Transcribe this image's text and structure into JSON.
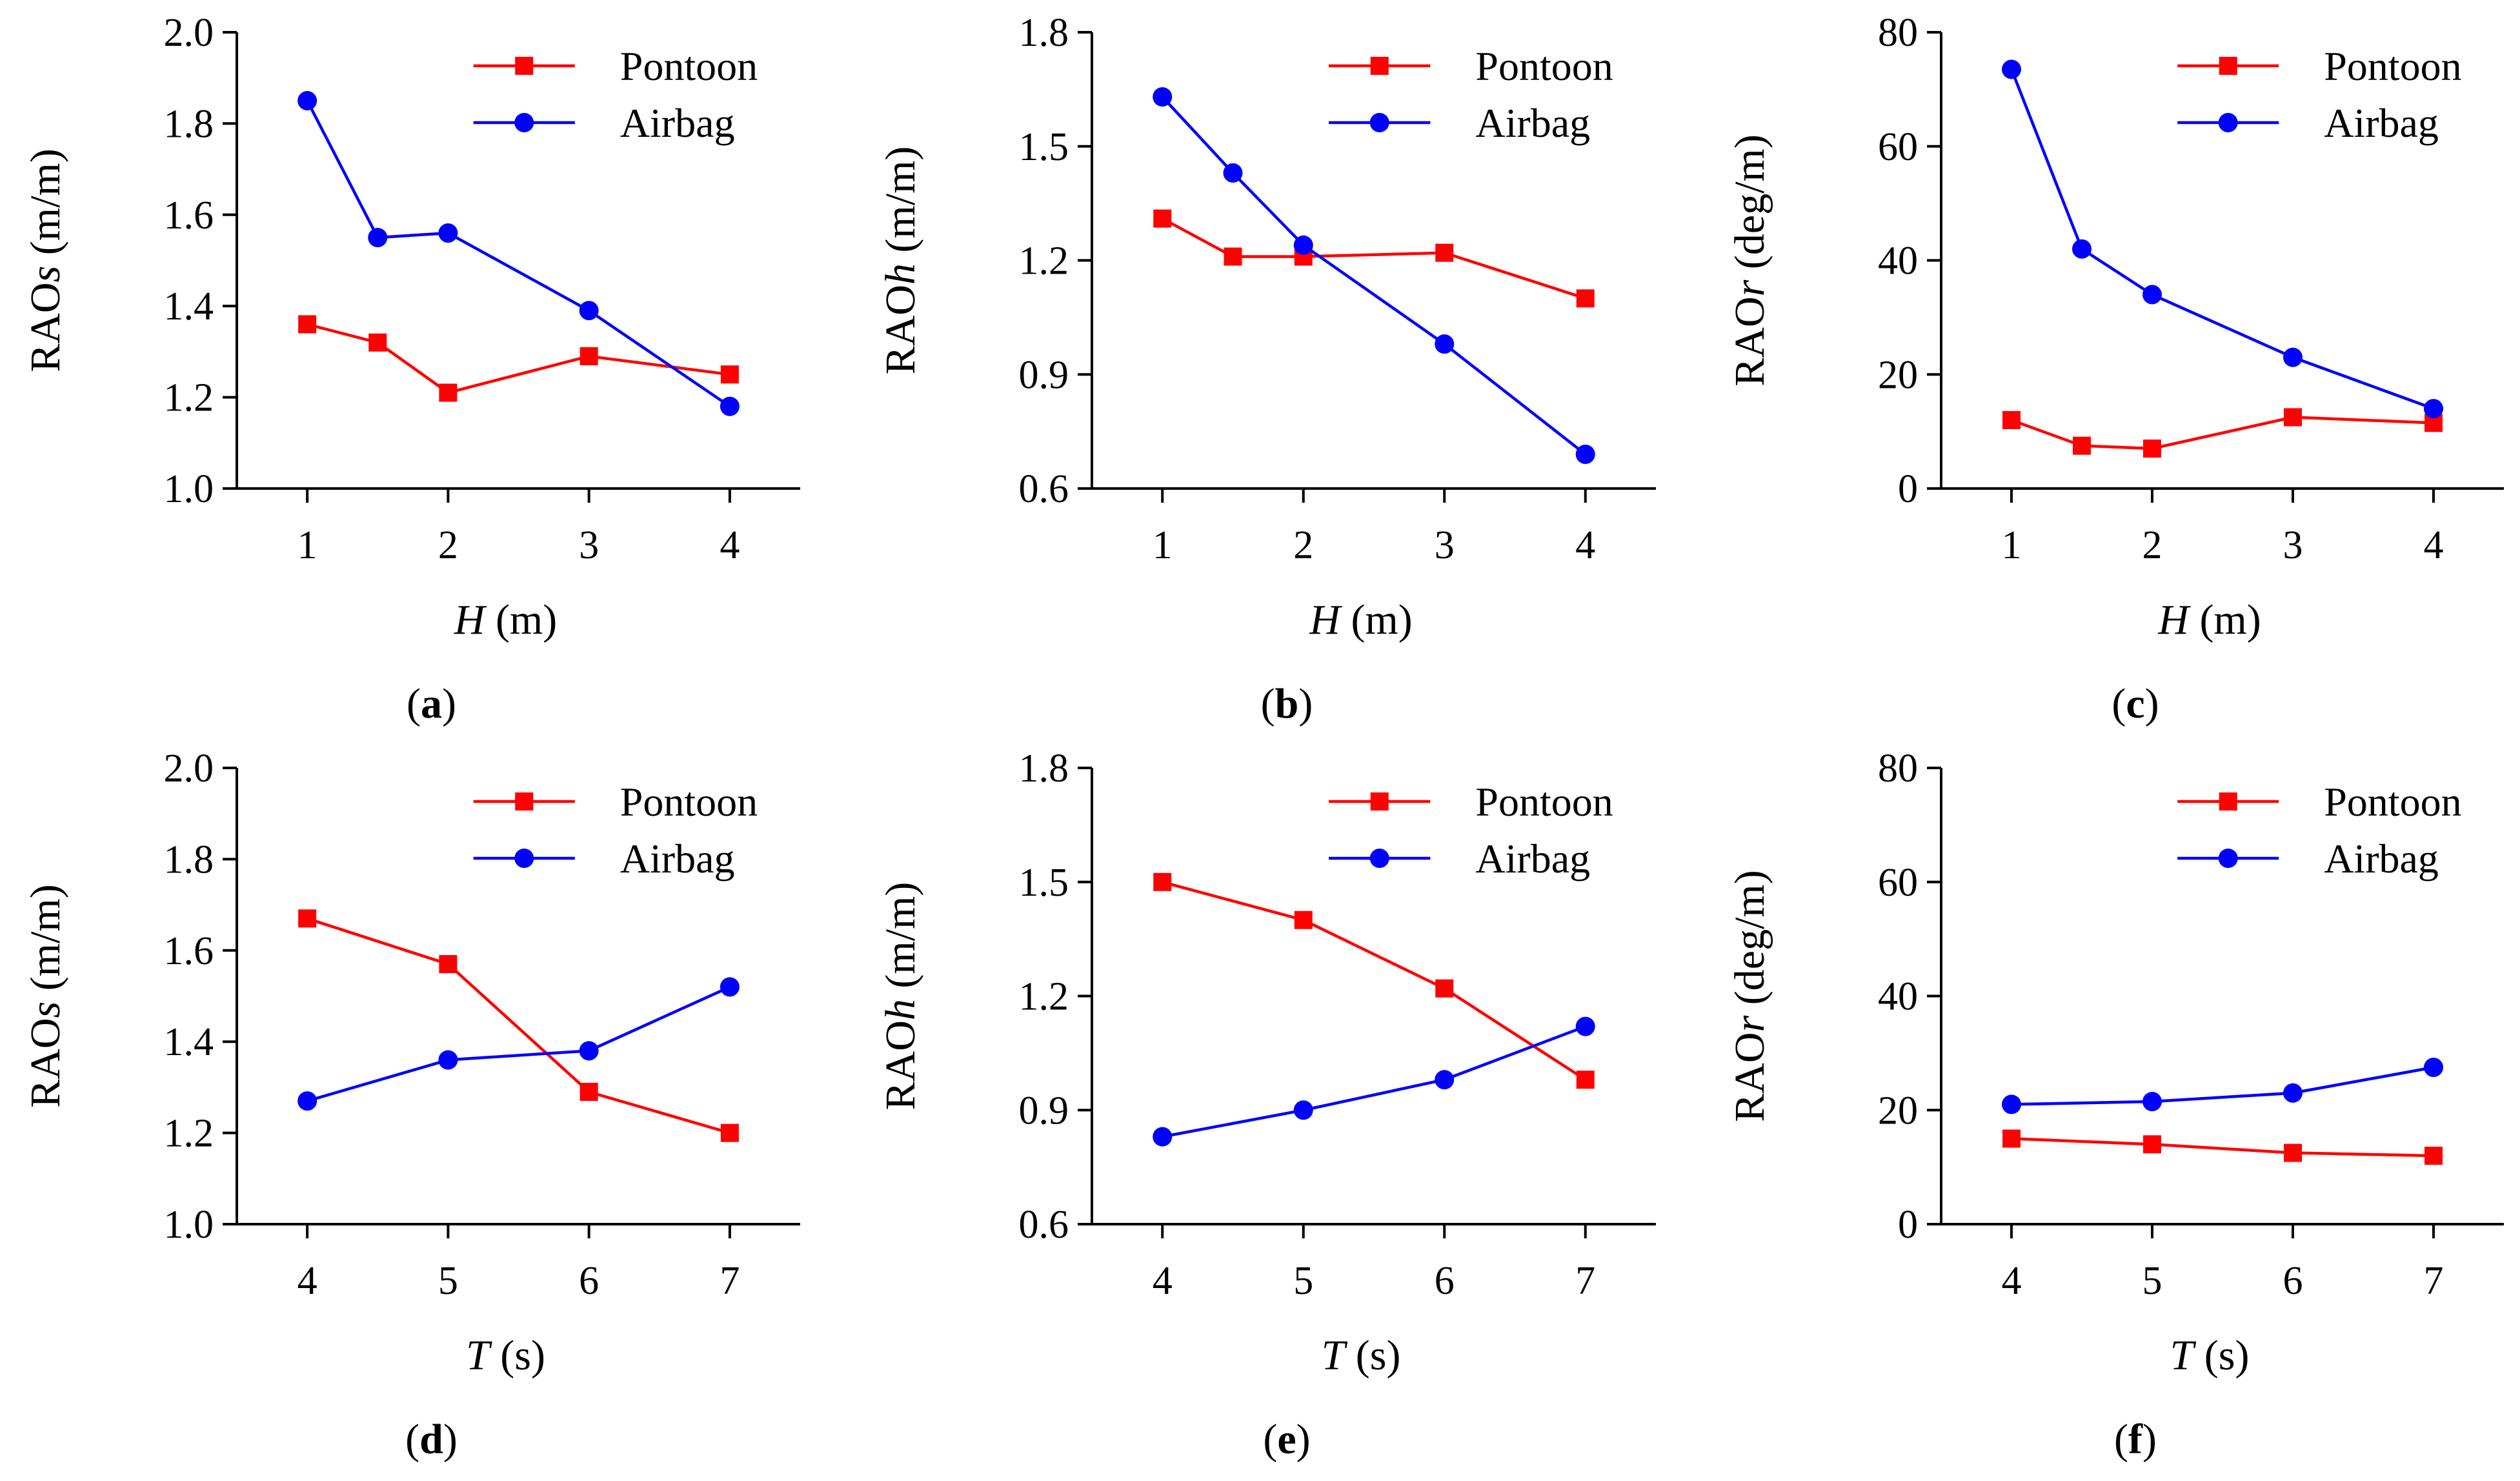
{
  "colors": {
    "pontoon": "#ff0000",
    "airbag": "#0000ff",
    "axis": "#000000"
  },
  "chart_data": [
    {
      "type": "line",
      "panel": "(a)",
      "ylabel_main": "RAO",
      "ylabel_sub": "s",
      "ylabel_unit": "(m/m)",
      "xlabel_var": "H",
      "xlabel_unit": "(m)",
      "xlim": [
        0.5,
        4.5
      ],
      "ylim": [
        1.0,
        2.0
      ],
      "xticks": [
        1,
        2,
        3,
        4
      ],
      "yticks": [
        1.0,
        1.2,
        1.4,
        1.6,
        1.8,
        2.0
      ],
      "ydecimals": 1,
      "legend_position": "top-right",
      "series": [
        {
          "name": "Pontoon",
          "marker": "square",
          "color": "#ff0000",
          "x": [
            1,
            1.5,
            2,
            3,
            4
          ],
          "y": [
            1.36,
            1.32,
            1.21,
            1.29,
            1.25
          ]
        },
        {
          "name": "Airbag",
          "marker": "circle",
          "color": "#0000ff",
          "x": [
            1,
            1.5,
            2,
            3,
            4
          ],
          "y": [
            1.85,
            1.55,
            1.56,
            1.39,
            1.18
          ]
        }
      ]
    },
    {
      "type": "line",
      "panel": "(b)",
      "ylabel_main": "RAO",
      "ylabel_sub": "h",
      "ylabel_unit": "(m/m)",
      "xlabel_var": "H",
      "xlabel_unit": "(m)",
      "xlim": [
        0.5,
        4.5
      ],
      "ylim": [
        0.6,
        1.8
      ],
      "xticks": [
        1,
        2,
        3,
        4
      ],
      "yticks": [
        0.6,
        0.9,
        1.2,
        1.5,
        1.8
      ],
      "ydecimals": 1,
      "legend_position": "top-right",
      "series": [
        {
          "name": "Pontoon",
          "marker": "square",
          "color": "#ff0000",
          "x": [
            1,
            1.5,
            2,
            3,
            4
          ],
          "y": [
            1.31,
            1.21,
            1.21,
            1.22,
            1.1
          ]
        },
        {
          "name": "Airbag",
          "marker": "circle",
          "color": "#0000ff",
          "x": [
            1,
            1.5,
            2,
            3,
            4
          ],
          "y": [
            1.63,
            1.43,
            1.24,
            0.98,
            0.69
          ]
        }
      ]
    },
    {
      "type": "line",
      "panel": "(c)",
      "ylabel_main": "RAO",
      "ylabel_sub": "r",
      "ylabel_unit": "(deg/m)",
      "xlabel_var": "H",
      "xlabel_unit": "(m)",
      "xlim": [
        0.5,
        4.5
      ],
      "ylim": [
        0,
        80
      ],
      "xticks": [
        1,
        2,
        3,
        4
      ],
      "yticks": [
        0,
        20,
        40,
        60,
        80
      ],
      "ydecimals": 0,
      "legend_position": "top-right",
      "series": [
        {
          "name": "Pontoon",
          "marker": "square",
          "color": "#ff0000",
          "x": [
            1,
            1.5,
            2,
            3,
            4
          ],
          "y": [
            12,
            7.5,
            7,
            12.5,
            11.5
          ]
        },
        {
          "name": "Airbag",
          "marker": "circle",
          "color": "#0000ff",
          "x": [
            1,
            1.5,
            2,
            3,
            4
          ],
          "y": [
            73.5,
            42,
            34,
            23,
            14
          ]
        }
      ]
    },
    {
      "type": "line",
      "panel": "(d)",
      "ylabel_main": "RAO",
      "ylabel_sub": "s",
      "ylabel_unit": "(m/m)",
      "xlabel_var": "T",
      "xlabel_unit": "(s)",
      "xlim": [
        3.5,
        7.5
      ],
      "ylim": [
        1.0,
        2.0
      ],
      "xticks": [
        4,
        5,
        6,
        7
      ],
      "yticks": [
        1.0,
        1.2,
        1.4,
        1.6,
        1.8,
        2.0
      ],
      "ydecimals": 1,
      "legend_position": "top-right",
      "series": [
        {
          "name": "Pontoon",
          "marker": "square",
          "color": "#ff0000",
          "x": [
            4,
            5,
            6,
            7
          ],
          "y": [
            1.67,
            1.57,
            1.29,
            1.2
          ]
        },
        {
          "name": "Airbag",
          "marker": "circle",
          "color": "#0000ff",
          "x": [
            4,
            5,
            6,
            7
          ],
          "y": [
            1.27,
            1.36,
            1.38,
            1.52
          ]
        }
      ]
    },
    {
      "type": "line",
      "panel": "(e)",
      "ylabel_main": "RAO",
      "ylabel_sub": "h",
      "ylabel_unit": "(m/m)",
      "xlabel_var": "T",
      "xlabel_unit": "(s)",
      "xlim": [
        3.5,
        7.5
      ],
      "ylim": [
        0.6,
        1.8
      ],
      "xticks": [
        4,
        5,
        6,
        7
      ],
      "yticks": [
        0.6,
        0.9,
        1.2,
        1.5,
        1.8
      ],
      "ydecimals": 1,
      "legend_position": "top-right",
      "series": [
        {
          "name": "Pontoon",
          "marker": "square",
          "color": "#ff0000",
          "x": [
            4,
            5,
            6,
            7
          ],
          "y": [
            1.5,
            1.4,
            1.22,
            0.98
          ]
        },
        {
          "name": "Airbag",
          "marker": "circle",
          "color": "#0000ff",
          "x": [
            4,
            5,
            6,
            7
          ],
          "y": [
            0.83,
            0.9,
            0.98,
            1.12
          ]
        }
      ]
    },
    {
      "type": "line",
      "panel": "(f)",
      "ylabel_main": "RAO",
      "ylabel_sub": "r",
      "ylabel_unit": "(deg/m)",
      "xlabel_var": "T",
      "xlabel_unit": "(s)",
      "xlim": [
        3.5,
        7.5
      ],
      "ylim": [
        0,
        80
      ],
      "xticks": [
        4,
        5,
        6,
        7
      ],
      "yticks": [
        0,
        20,
        40,
        60,
        80
      ],
      "ydecimals": 0,
      "legend_position": "top-right",
      "series": [
        {
          "name": "Pontoon",
          "marker": "square",
          "color": "#ff0000",
          "x": [
            4,
            5,
            6,
            7
          ],
          "y": [
            15,
            14,
            12.5,
            12
          ]
        },
        {
          "name": "Airbag",
          "marker": "circle",
          "color": "#0000ff",
          "x": [
            4,
            5,
            6,
            7
          ],
          "y": [
            21,
            21.5,
            23,
            27.5
          ]
        }
      ]
    }
  ]
}
